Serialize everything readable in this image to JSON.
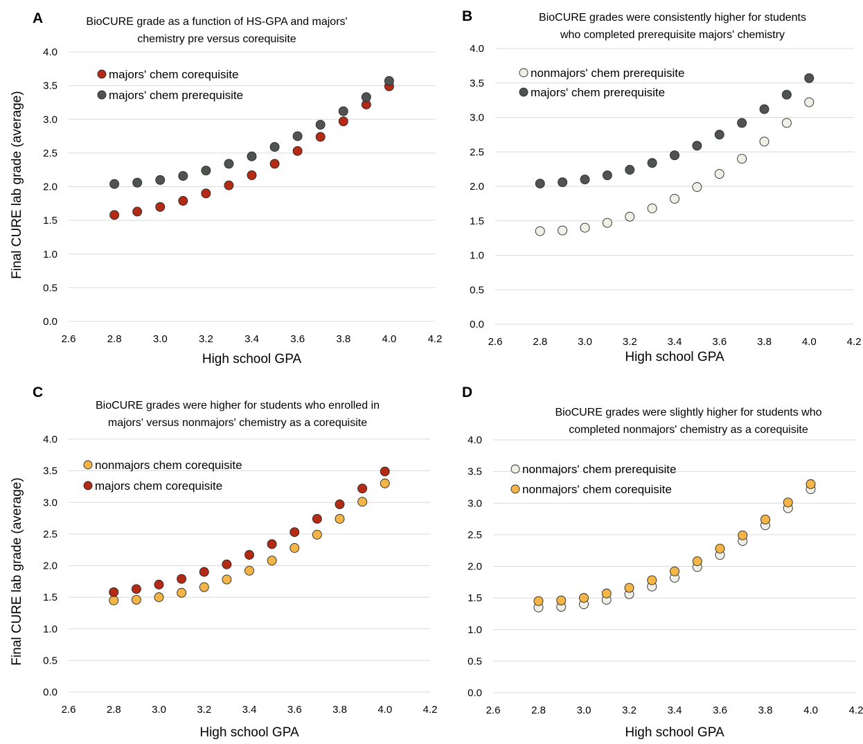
{
  "colors": {
    "pre_majors": "#505450",
    "coreq_majors": "#b32a15",
    "pre_nonmajors": "#f1f0e6",
    "coreq_nonmajors": "#f4b548",
    "gridline": "#d9d9d9",
    "marker_stroke": "#262626"
  },
  "chart_data": [
    {
      "panel": "A",
      "type": "scatter",
      "title": "BioCURE grade as a function of HS-GPA and majors' chemistry pre versus corequisite",
      "title_lines": [
        "BioCURE grade as a function of HS-GPA and majors'",
        "chemistry pre versus corequisite"
      ],
      "xlabel": "High school GPA",
      "ylabel": "Final CURE lab grade (average)",
      "xlim": [
        2.6,
        4.2
      ],
      "ylim": [
        0.0,
        4.0
      ],
      "xticks": [
        "2.6",
        "2.8",
        "3.0",
        "3.2",
        "3.4",
        "3.6",
        "3.8",
        "4.0",
        "4.2"
      ],
      "yticks": [
        "0.0",
        "0.5",
        "1.0",
        "1.5",
        "2.0",
        "2.5",
        "3.0",
        "3.5",
        "4.0"
      ],
      "grid": "horizontal",
      "legend_position": "top-left",
      "x": [
        2.8,
        2.9,
        3.0,
        3.1,
        3.2,
        3.3,
        3.4,
        3.5,
        3.6,
        3.7,
        3.8,
        3.9,
        4.0
      ],
      "series": [
        {
          "name": "majors' chem corequisite",
          "color": "coreq_majors",
          "values": [
            1.58,
            1.63,
            1.7,
            1.79,
            1.9,
            2.02,
            2.17,
            2.34,
            2.53,
            2.74,
            2.97,
            3.22,
            3.49
          ]
        },
        {
          "name": "majors' chem prerequisite",
          "color": "pre_majors",
          "values": [
            2.04,
            2.06,
            2.1,
            2.16,
            2.24,
            2.34,
            2.45,
            2.59,
            2.75,
            2.92,
            3.12,
            3.33,
            3.57
          ]
        }
      ]
    },
    {
      "panel": "B",
      "type": "scatter",
      "title": "BioCURE grades were consistently higher for students who completed prerequisite majors' chemistry",
      "title_lines": [
        "BioCURE grades were consistently higher for students",
        "who completed prerequisite majors' chemistry"
      ],
      "xlabel": "High school GPA",
      "ylabel": "",
      "xlim": [
        2.6,
        4.2
      ],
      "ylim": [
        0.0,
        4.0
      ],
      "xticks": [
        "2.6",
        "2.8",
        "3.0",
        "3.2",
        "3.4",
        "3.6",
        "3.8",
        "4.0",
        "4.2"
      ],
      "yticks": [
        "0.0",
        "0.5",
        "1.0",
        "1.5",
        "2.0",
        "2.5",
        "3.0",
        "3.5",
        "4.0"
      ],
      "grid": "horizontal",
      "legend_position": "top-left",
      "x": [
        2.8,
        2.9,
        3.0,
        3.1,
        3.2,
        3.3,
        3.4,
        3.5,
        3.6,
        3.7,
        3.8,
        3.9,
        4.0
      ],
      "series": [
        {
          "name": "nonmajors' chem prerequisite",
          "color": "pre_nonmajors",
          "values": [
            1.35,
            1.36,
            1.4,
            1.47,
            1.56,
            1.68,
            1.82,
            1.99,
            2.18,
            2.4,
            2.65,
            2.92,
            3.22
          ]
        },
        {
          "name": "majors' chem prerequisite",
          "color": "pre_majors",
          "values": [
            2.04,
            2.06,
            2.1,
            2.16,
            2.24,
            2.34,
            2.45,
            2.59,
            2.75,
            2.92,
            3.12,
            3.33,
            3.57
          ]
        }
      ]
    },
    {
      "panel": "C",
      "type": "scatter",
      "title": "BioCURE grades were higher for students who enrolled in majors' versus nonmajors' chemistry as a corequisite",
      "title_lines": [
        "BioCURE grades were higher for students who enrolled in",
        "majors' versus nonmajors' chemistry as a corequisite"
      ],
      "xlabel": "High school GPA",
      "ylabel": "Final CURE lab grade (average)",
      "xlim": [
        2.6,
        4.2
      ],
      "ylim": [
        0.0,
        4.0
      ],
      "xticks": [
        "2.6",
        "2.8",
        "3.0",
        "3.2",
        "3.4",
        "3.6",
        "3.8",
        "4.0",
        "4.2"
      ],
      "yticks": [
        "0.0",
        "0.5",
        "1.0",
        "1.5",
        "2.0",
        "2.5",
        "3.0",
        "3.5",
        "4.0"
      ],
      "grid": "horizontal",
      "legend_position": "top-left",
      "x": [
        2.8,
        2.9,
        3.0,
        3.1,
        3.2,
        3.3,
        3.4,
        3.5,
        3.6,
        3.7,
        3.8,
        3.9,
        4.0
      ],
      "series": [
        {
          "name": "nonmajors chem corequisite",
          "color": "coreq_nonmajors",
          "values": [
            1.45,
            1.46,
            1.5,
            1.57,
            1.66,
            1.78,
            1.92,
            2.08,
            2.28,
            2.49,
            2.74,
            3.01,
            3.3
          ]
        },
        {
          "name": "majors chem corequisite",
          "color": "coreq_majors",
          "values": [
            1.58,
            1.63,
            1.7,
            1.79,
            1.9,
            2.02,
            2.17,
            2.34,
            2.53,
            2.74,
            2.97,
            3.22,
            3.49
          ]
        }
      ]
    },
    {
      "panel": "D",
      "type": "scatter",
      "title": "BioCURE grades were slightly higher for students who completed nonmajors' chemistry as a corequisite",
      "title_lines": [
        "BioCURE grades were slightly higher for students who",
        "completed nonmajors' chemistry as a corequisite"
      ],
      "xlabel": "High school GPA",
      "ylabel": "",
      "xlim": [
        2.6,
        4.2
      ],
      "ylim": [
        0.0,
        4.0
      ],
      "xticks": [
        "2.6",
        "2.8",
        "3.0",
        "3.2",
        "3.4",
        "3.6",
        "3.8",
        "4.0",
        "4.2"
      ],
      "yticks": [
        "0.0",
        "0.5",
        "1.0",
        "1.5",
        "2.0",
        "2.5",
        "3.0",
        "3.5",
        "4.0"
      ],
      "grid": "horizontal",
      "legend_position": "top-left",
      "x": [
        2.8,
        2.9,
        3.0,
        3.1,
        3.2,
        3.3,
        3.4,
        3.5,
        3.6,
        3.7,
        3.8,
        3.9,
        4.0
      ],
      "series": [
        {
          "name": "nonmajors' chem prerequisite",
          "color": "pre_nonmajors",
          "values": [
            1.35,
            1.36,
            1.4,
            1.47,
            1.56,
            1.68,
            1.82,
            1.99,
            2.18,
            2.4,
            2.65,
            2.92,
            3.22
          ]
        },
        {
          "name": "nonmajors' chem corequisite",
          "color": "coreq_nonmajors",
          "values": [
            1.45,
            1.46,
            1.5,
            1.57,
            1.66,
            1.78,
            1.92,
            2.08,
            2.28,
            2.49,
            2.74,
            3.01,
            3.3
          ]
        }
      ]
    }
  ]
}
